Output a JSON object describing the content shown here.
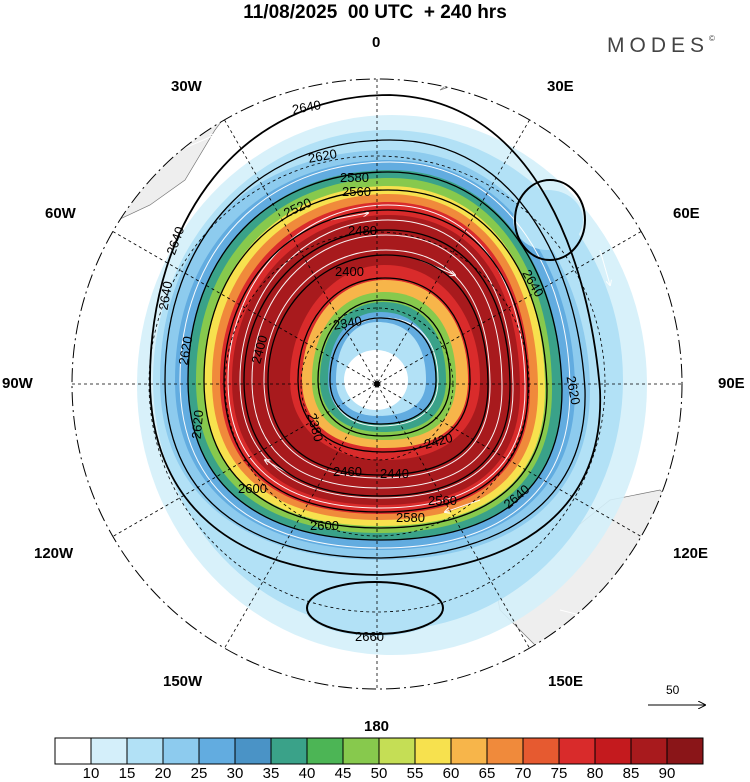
{
  "title": "11/08/2025  00 UTC  + 240 hrs",
  "brand": "MODES",
  "brand_mark": "©",
  "longitude_labels": {
    "lon_0": "0",
    "lon_30e": "30E",
    "lon_60e": "60E",
    "lon_90e": "90E",
    "lon_120e": "120E",
    "lon_150e": "150E",
    "lon_180": "180",
    "lon_150w": "150W",
    "lon_120w": "120W",
    "lon_90w": "90W",
    "lon_60w": "60W",
    "lon_30w": "30W"
  },
  "contour_labels": {
    "c2640_nw": "2640",
    "c2620_n": "2620",
    "c2580_n": "2580",
    "c2560_n": "2560",
    "c2520_n": "2520",
    "c2480_n": "2480",
    "c2400_n": "2400",
    "c2340_c": "2340",
    "c2640_w1": "2640",
    "c2640_w2": "2640",
    "c2620_w1": "2620",
    "c2620_w2": "2620",
    "c2400_w": "2400",
    "c2380_c": "2380",
    "c2420_s": "2420",
    "c2440_s": "2440",
    "c2460_s": "2460",
    "c2560_s": "2560",
    "c2580_s": "2580",
    "c2600_sw": "2600",
    "c2600_s": "2600",
    "c2640_se": "2640",
    "c2640_e": "2640",
    "c2620_e": "2620",
    "c2660_s": "2660"
  },
  "vector_scale": "50",
  "colorbar": {
    "ticks": [
      "10",
      "15",
      "20",
      "25",
      "30",
      "35",
      "40",
      "45",
      "50",
      "55",
      "60",
      "65",
      "70",
      "75",
      "80",
      "85",
      "90"
    ],
    "colors": [
      "#ffffff",
      "#d4effa",
      "#b2e1f6",
      "#8dcbee",
      "#62ace0",
      "#4a93c6",
      "#3aa289",
      "#4cb555",
      "#87c94d",
      "#c5de55",
      "#f7e14e",
      "#f7b54a",
      "#f08a3b",
      "#e65a30",
      "#d92b2b",
      "#c41a1e",
      "#a81a1d",
      "#8a1518"
    ]
  }
}
